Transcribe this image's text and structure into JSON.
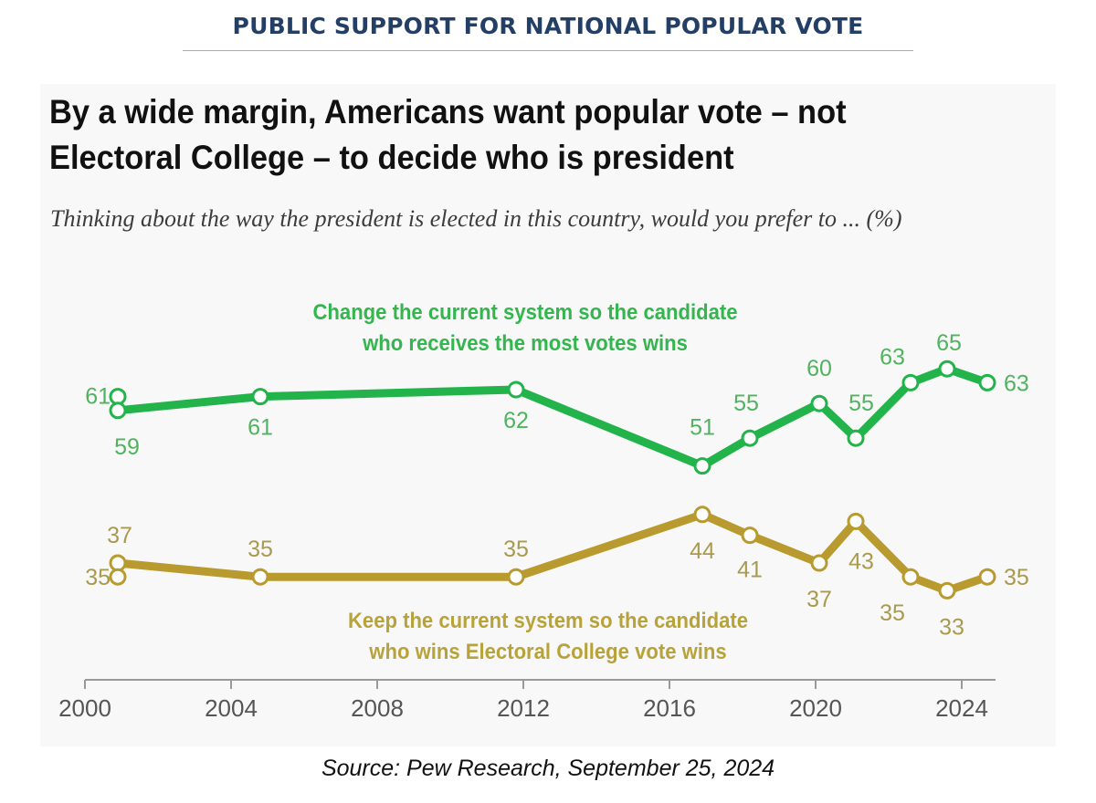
{
  "header": {
    "title": "PUBLIC SUPPORT FOR NATIONAL POPULAR VOTE"
  },
  "source": "Source: Pew Research, September 25, 2024",
  "colors": {
    "change": "#22b34a",
    "change_text": "#4fb35f",
    "keep": "#b89a2e",
    "keep_text": "#a99a4e",
    "axis": "#999999",
    "header": "#243f66"
  },
  "chart_data": {
    "type": "line",
    "title": "By a wide margin, Americans want popular vote – not Electoral College – to decide who is president",
    "subtitle": "Thinking about the way the president is elected in this country, would you prefer to ... (%)",
    "xlabel": "",
    "ylabel": "",
    "xlim": [
      2000,
      2025
    ],
    "ylim": [
      30,
      70
    ],
    "x_ticks": [
      "2000",
      "2004",
      "2008",
      "2012",
      "2016",
      "2020",
      "2024"
    ],
    "grid": false,
    "x": [
      2000.9,
      2000.9,
      2004.8,
      2011.8,
      2016.9,
      2018.2,
      2020.1,
      2021.1,
      2022.6,
      2023.6,
      2024.7
    ],
    "series": [
      {
        "name": "Change the current system so the candidate who receives the most votes wins",
        "label_lines": [
          "Change the current system so the candidate",
          "who receives the most votes wins"
        ],
        "values": [
          61,
          59,
          61,
          62,
          51,
          55,
          60,
          55,
          63,
          65,
          63
        ]
      },
      {
        "name": "Keep the current system so the candidate who wins Electoral College vote wins",
        "label_lines": [
          "Keep the current system so the candidate",
          "who wins Electoral College vote wins"
        ],
        "values": [
          37,
          35,
          35,
          35,
          44,
          41,
          37,
          43,
          35,
          33,
          35
        ]
      }
    ]
  }
}
